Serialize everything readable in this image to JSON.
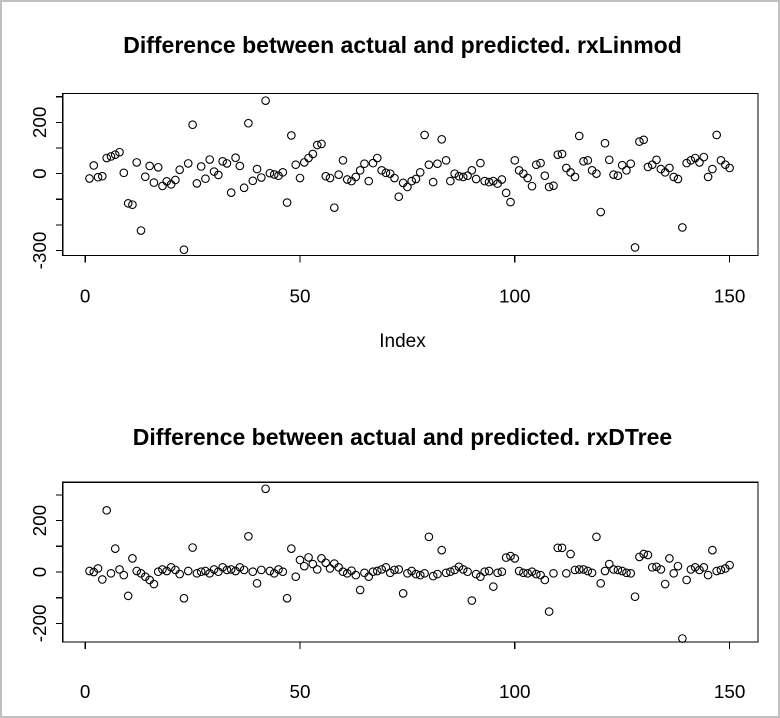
{
  "window": {
    "background": "#ffffff",
    "border_color": "#c0c0c0",
    "foreground": "#000000"
  },
  "chart_data": [
    {
      "type": "scatter",
      "title": "Difference between actual and predicted. rxLinmod",
      "xlabel": "Index",
      "ylabel": "",
      "marker": "open-circle",
      "marker_color": "#000000",
      "grid": false,
      "legend": "none",
      "xlim": [
        -5.2,
        156.6
      ],
      "ylim": [
        -320,
        313
      ],
      "xticks": [
        {
          "v": 0,
          "label": "0"
        },
        {
          "v": 50,
          "label": "50"
        },
        {
          "v": 100,
          "label": "100"
        },
        {
          "v": 150,
          "label": "150"
        }
      ],
      "yticks": [
        {
          "v": 300,
          "label": ""
        },
        {
          "v": 200,
          "label": "200"
        },
        {
          "v": 100,
          "label": ""
        },
        {
          "v": 0,
          "label": "0"
        },
        {
          "v": -100,
          "label": ""
        },
        {
          "v": -200,
          "label": ""
        },
        {
          "v": -300,
          "label": "-300"
        }
      ],
      "points": [
        [
          1,
          -19
        ],
        [
          2,
          32
        ],
        [
          3,
          -14
        ],
        [
          4,
          -10
        ],
        [
          5,
          61
        ],
        [
          6,
          67
        ],
        [
          7,
          74
        ],
        [
          8,
          84
        ],
        [
          9,
          3
        ],
        [
          10,
          -116
        ],
        [
          11,
          -121
        ],
        [
          12,
          44
        ],
        [
          13,
          -222
        ],
        [
          14,
          -12
        ],
        [
          15,
          30
        ],
        [
          16,
          -35
        ],
        [
          17,
          25
        ],
        [
          18,
          -48
        ],
        [
          19,
          -30
        ],
        [
          20,
          -42
        ],
        [
          21,
          -25
        ],
        [
          22,
          15
        ],
        [
          23,
          -297
        ],
        [
          24,
          40
        ],
        [
          25,
          191
        ],
        [
          26,
          -38
        ],
        [
          27,
          28
        ],
        [
          28,
          -20
        ],
        [
          29,
          55
        ],
        [
          30,
          8
        ],
        [
          31,
          -5
        ],
        [
          32,
          48
        ],
        [
          33,
          40
        ],
        [
          34,
          -74
        ],
        [
          35,
          62
        ],
        [
          36,
          30
        ],
        [
          37,
          -55
        ],
        [
          38,
          197
        ],
        [
          39,
          -28
        ],
        [
          40,
          18
        ],
        [
          41,
          -15
        ],
        [
          42,
          285
        ],
        [
          43,
          2
        ],
        [
          44,
          -3
        ],
        [
          45,
          -8
        ],
        [
          46,
          5
        ],
        [
          47,
          -113
        ],
        [
          48,
          149
        ],
        [
          49,
          35
        ],
        [
          50,
          -17
        ],
        [
          51,
          44
        ],
        [
          52,
          61
        ],
        [
          53,
          77
        ],
        [
          54,
          112
        ],
        [
          55,
          116
        ],
        [
          56,
          -10
        ],
        [
          57,
          -17
        ],
        [
          58,
          -133
        ],
        [
          59,
          -4
        ],
        [
          60,
          52
        ],
        [
          61,
          -23
        ],
        [
          62,
          -29
        ],
        [
          63,
          -13
        ],
        [
          64,
          13
        ],
        [
          65,
          39
        ],
        [
          66,
          -29
        ],
        [
          67,
          41
        ],
        [
          68,
          61
        ],
        [
          69,
          13
        ],
        [
          70,
          3
        ],
        [
          71,
          0
        ],
        [
          72,
          -17
        ],
        [
          73,
          -90
        ],
        [
          74,
          -36
        ],
        [
          75,
          -52
        ],
        [
          76,
          -29
        ],
        [
          77,
          -21
        ],
        [
          78,
          5
        ],
        [
          79,
          151
        ],
        [
          80,
          35
        ],
        [
          81,
          -33
        ],
        [
          82,
          39
        ],
        [
          83,
          134
        ],
        [
          84,
          52
        ],
        [
          85,
          -29
        ],
        [
          86,
          0
        ],
        [
          87,
          -10
        ],
        [
          88,
          -13
        ],
        [
          89,
          -8
        ],
        [
          90,
          13
        ],
        [
          91,
          -21
        ],
        [
          92,
          41
        ],
        [
          93,
          -29
        ],
        [
          94,
          -33
        ],
        [
          95,
          -29
        ],
        [
          96,
          -39
        ],
        [
          97,
          -23
        ],
        [
          98,
          -75
        ],
        [
          99,
          -111
        ],
        [
          100,
          52
        ],
        [
          101,
          13
        ],
        [
          102,
          0
        ],
        [
          103,
          -17
        ],
        [
          104,
          -49
        ],
        [
          105,
          35
        ],
        [
          106,
          41
        ],
        [
          107,
          -8
        ],
        [
          108,
          -52
        ],
        [
          109,
          -47
        ],
        [
          110,
          74
        ],
        [
          111,
          77
        ],
        [
          112,
          22
        ],
        [
          113,
          5
        ],
        [
          114,
          -13
        ],
        [
          115,
          147
        ],
        [
          116,
          48
        ],
        [
          117,
          52
        ],
        [
          118,
          13
        ],
        [
          119,
          0
        ],
        [
          120,
          -150
        ],
        [
          121,
          119
        ],
        [
          122,
          54
        ],
        [
          123,
          -4
        ],
        [
          124,
          -8
        ],
        [
          125,
          33
        ],
        [
          126,
          13
        ],
        [
          127,
          39
        ],
        [
          128,
          -288
        ],
        [
          129,
          125
        ],
        [
          130,
          132
        ],
        [
          131,
          26
        ],
        [
          132,
          35
        ],
        [
          133,
          54
        ],
        [
          134,
          18
        ],
        [
          135,
          5
        ],
        [
          136,
          22
        ],
        [
          137,
          -13
        ],
        [
          138,
          -21
        ],
        [
          139,
          -210
        ],
        [
          140,
          41
        ],
        [
          141,
          52
        ],
        [
          142,
          61
        ],
        [
          143,
          44
        ],
        [
          144,
          65
        ],
        [
          145,
          -13
        ],
        [
          146,
          18
        ],
        [
          147,
          151
        ],
        [
          148,
          52
        ],
        [
          149,
          35
        ],
        [
          150,
          22
        ]
      ]
    },
    {
      "type": "scatter",
      "title": "Difference between actual and predicted. rxDTree",
      "xlabel": "",
      "ylabel": "",
      "marker": "open-circle",
      "marker_color": "#000000",
      "grid": false,
      "legend": "none",
      "xlim": [
        -5.2,
        156.6
      ],
      "ylim": [
        -272,
        349
      ],
      "xticks": [
        {
          "v": 0,
          "label": "0"
        },
        {
          "v": 50,
          "label": "50"
        },
        {
          "v": 100,
          "label": "100"
        },
        {
          "v": 150,
          "label": "150"
        }
      ],
      "yticks": [
        {
          "v": 300,
          "label": ""
        },
        {
          "v": 200,
          "label": "200"
        },
        {
          "v": 100,
          "label": ""
        },
        {
          "v": 0,
          "label": "0"
        },
        {
          "v": -100,
          "label": ""
        },
        {
          "v": -200,
          "label": "-200"
        }
      ],
      "points": [
        [
          1,
          4
        ],
        [
          2,
          0
        ],
        [
          3,
          14
        ],
        [
          4,
          -29
        ],
        [
          5,
          240
        ],
        [
          6,
          -5
        ],
        [
          7,
          91
        ],
        [
          8,
          10
        ],
        [
          9,
          -12
        ],
        [
          10,
          -93
        ],
        [
          11,
          53
        ],
        [
          12,
          4
        ],
        [
          13,
          -5
        ],
        [
          14,
          -18
        ],
        [
          15,
          -31
        ],
        [
          16,
          -47
        ],
        [
          17,
          1
        ],
        [
          18,
          10
        ],
        [
          19,
          4
        ],
        [
          20,
          18
        ],
        [
          21,
          8
        ],
        [
          22,
          -8
        ],
        [
          23,
          -102
        ],
        [
          24,
          4
        ],
        [
          25,
          95
        ],
        [
          26,
          -5
        ],
        [
          27,
          1
        ],
        [
          28,
          4
        ],
        [
          29,
          -5
        ],
        [
          30,
          10
        ],
        [
          31,
          1
        ],
        [
          32,
          18
        ],
        [
          33,
          8
        ],
        [
          34,
          10
        ],
        [
          35,
          4
        ],
        [
          36,
          18
        ],
        [
          37,
          8
        ],
        [
          38,
          139
        ],
        [
          39,
          1
        ],
        [
          40,
          -44
        ],
        [
          41,
          8
        ],
        [
          42,
          324
        ],
        [
          43,
          4
        ],
        [
          44,
          -5
        ],
        [
          45,
          10
        ],
        [
          46,
          1
        ],
        [
          47,
          -102
        ],
        [
          48,
          91
        ],
        [
          49,
          -18
        ],
        [
          50,
          47
        ],
        [
          51,
          23
        ],
        [
          52,
          57
        ],
        [
          53,
          31
        ],
        [
          54,
          10
        ],
        [
          55,
          53
        ],
        [
          56,
          36
        ],
        [
          57,
          14
        ],
        [
          58,
          33
        ],
        [
          59,
          18
        ],
        [
          60,
          1
        ],
        [
          61,
          -5
        ],
        [
          62,
          5
        ],
        [
          63,
          -12
        ],
        [
          64,
          -70
        ],
        [
          65,
          -3
        ],
        [
          66,
          -18
        ],
        [
          67,
          1
        ],
        [
          68,
          4
        ],
        [
          69,
          10
        ],
        [
          70,
          18
        ],
        [
          71,
          -3
        ],
        [
          72,
          8
        ],
        [
          73,
          10
        ],
        [
          74,
          -83
        ],
        [
          75,
          -5
        ],
        [
          76,
          4
        ],
        [
          77,
          -8
        ],
        [
          78,
          -12
        ],
        [
          79,
          -5
        ],
        [
          80,
          137
        ],
        [
          81,
          -16
        ],
        [
          82,
          -8
        ],
        [
          83,
          85
        ],
        [
          84,
          -3
        ],
        [
          85,
          1
        ],
        [
          86,
          8
        ],
        [
          87,
          20
        ],
        [
          88,
          10
        ],
        [
          89,
          1
        ],
        [
          90,
          -111
        ],
        [
          91,
          -8
        ],
        [
          92,
          -18
        ],
        [
          93,
          1
        ],
        [
          94,
          4
        ],
        [
          95,
          -57
        ],
        [
          96,
          -3
        ],
        [
          97,
          1
        ],
        [
          98,
          56
        ],
        [
          99,
          62
        ],
        [
          100,
          53
        ],
        [
          101,
          4
        ],
        [
          102,
          -3
        ],
        [
          103,
          -5
        ],
        [
          104,
          1
        ],
        [
          105,
          -8
        ],
        [
          106,
          -12
        ],
        [
          107,
          -31
        ],
        [
          108,
          -154
        ],
        [
          109,
          -5
        ],
        [
          110,
          94
        ],
        [
          111,
          94
        ],
        [
          112,
          -5
        ],
        [
          113,
          70
        ],
        [
          114,
          8
        ],
        [
          115,
          10
        ],
        [
          116,
          10
        ],
        [
          117,
          4
        ],
        [
          118,
          -3
        ],
        [
          119,
          137
        ],
        [
          120,
          -44
        ],
        [
          121,
          4
        ],
        [
          122,
          31
        ],
        [
          123,
          10
        ],
        [
          124,
          8
        ],
        [
          125,
          4
        ],
        [
          126,
          -3
        ],
        [
          127,
          -5
        ],
        [
          128,
          -96
        ],
        [
          129,
          59
        ],
        [
          130,
          70
        ],
        [
          131,
          66
        ],
        [
          132,
          18
        ],
        [
          133,
          20
        ],
        [
          134,
          10
        ],
        [
          135,
          -47
        ],
        [
          136,
          53
        ],
        [
          137,
          -5
        ],
        [
          138,
          23
        ],
        [
          139,
          -259
        ],
        [
          140,
          -31
        ],
        [
          141,
          10
        ],
        [
          142,
          18
        ],
        [
          143,
          8
        ],
        [
          144,
          18
        ],
        [
          145,
          -12
        ],
        [
          146,
          85
        ],
        [
          147,
          4
        ],
        [
          148,
          8
        ],
        [
          149,
          14
        ],
        [
          150,
          27
        ]
      ]
    }
  ]
}
